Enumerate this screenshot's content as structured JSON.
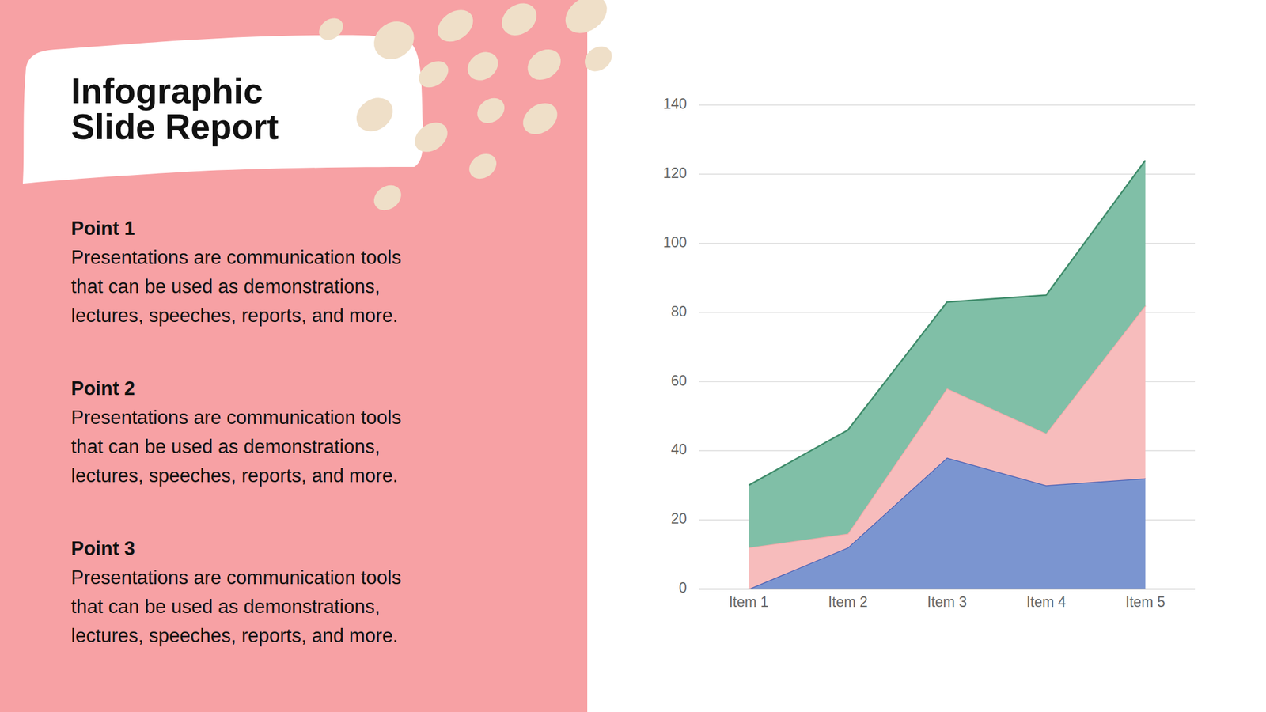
{
  "title_lines": [
    "Infographic",
    "Slide Report"
  ],
  "points": [
    {
      "heading": "Point 1",
      "text": "Presentations are communication tools that can be used as demonstrations, lectures, speeches, reports, and more."
    },
    {
      "heading": "Point 2",
      "text": "Presentations are communication tools that can be used as demonstrations, lectures, speeches, reports, and more."
    },
    {
      "heading": "Point 3",
      "text": "Presentations are communication tools that can be used as demonstrations, lectures, speeches, reports, and more."
    }
  ],
  "chart_data": {
    "type": "area",
    "stacked": true,
    "categories": [
      "Item 1",
      "Item 2",
      "Item 3",
      "Item 4",
      "Item 5"
    ],
    "series": [
      {
        "color": "#7b95d0",
        "values": [
          0,
          12,
          38,
          30,
          32
        ]
      },
      {
        "color": "#f7bcbc",
        "values": [
          12,
          4,
          20,
          15,
          50
        ]
      },
      {
        "color": "#80bfa7",
        "values": [
          18,
          30,
          25,
          40,
          42
        ]
      }
    ],
    "ylim": [
      0,
      140
    ],
    "yticks": [
      0,
      20,
      40,
      60,
      80,
      100,
      120,
      140
    ],
    "grid": true
  }
}
